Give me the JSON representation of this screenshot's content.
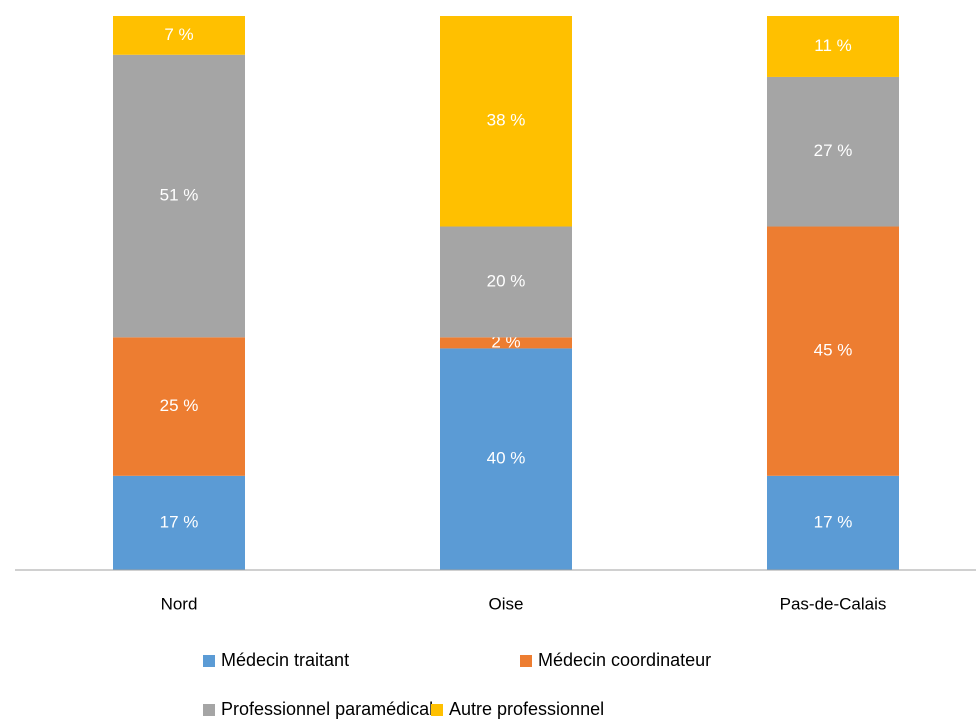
{
  "chart_data": {
    "type": "stacked_bar",
    "categories": [
      "Nord",
      "Oise",
      "Pas-de-Calais"
    ],
    "ylim": [
      0,
      100
    ],
    "series": [
      {
        "name": "Médecin traitant",
        "color": "#5b9bd5",
        "values": [
          17,
          40,
          17
        ],
        "value_labels": [
          "17 %",
          "40 %",
          "17 %"
        ]
      },
      {
        "name": "Médecin coordinateur",
        "color": "#ed7d31",
        "values": [
          25,
          2,
          45
        ],
        "value_labels": [
          "25 %",
          "2 %",
          "45 %"
        ]
      },
      {
        "name": "Professionnel paramédical",
        "color": "#a5a5a5",
        "values": [
          51,
          20,
          27
        ],
        "value_labels": [
          "51 %",
          "20 %",
          "27 %"
        ]
      },
      {
        "name": "Autre professionnel",
        "color": "#ffc000",
        "values": [
          7,
          38,
          11
        ],
        "value_labels": [
          "7 %",
          "38 %",
          "11 %"
        ]
      }
    ]
  }
}
